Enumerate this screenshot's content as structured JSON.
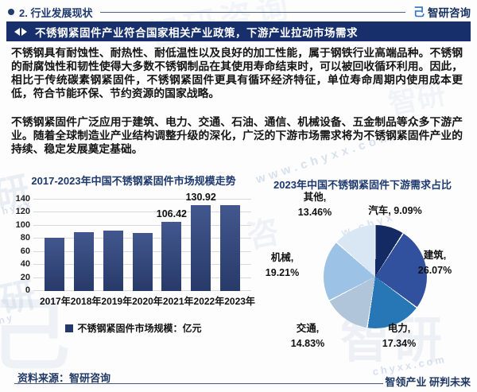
{
  "header": {
    "section_title": "2. 行业发展现状",
    "brand": "智研咨询"
  },
  "icons": {
    "brand_logo": "己"
  },
  "banner": {
    "headline": "不锈钢紧固件产业符合国家相关产业政策，下游产业拉动市场需求"
  },
  "body": {
    "paragraph_1": "不锈钢具有耐蚀性、耐热性、耐低温性以及良好的加工性能，属于钢铁行业高端品种。不锈钢的耐腐蚀性和韧性使得大多数不锈钢制品在其使用寿命结束时，可以被回收循环利用。因此，相比于传统碳素钢紧固件，不锈钢紧固件更具有循环经济特征，单位寿命周期内使用成本更低，符合节能环保、节约资源的国家战略。",
    "paragraph_2": "不锈钢紧固件广泛应用于建筑、电力、交通、石油、通信、机械设备、五金制品等众多下游产业。随着全球制造业产业结构调整升级的深化，广泛的下游市场需求将为不锈钢紧固件产业的持续、稳定发展奠定基础。"
  },
  "chart_data": [
    {
      "type": "bar",
      "title": "2017-2023年中国不锈钢紧固件市场规模走势",
      "categories": [
        "2017年",
        "2018年",
        "2019年",
        "2020年",
        "2021年",
        "2022年",
        "2023年"
      ],
      "values": [
        81,
        90,
        92,
        89,
        106.42,
        130.92,
        131
      ],
      "value_labels": [
        "",
        "",
        "",
        "",
        "106.42",
        "130.92",
        ""
      ],
      "legend": "不锈钢紧固件市场规模：亿元",
      "xlabel": "",
      "ylabel": "",
      "ylim": [
        0,
        140
      ],
      "ytick_step": 20,
      "grid": true,
      "legend_position": "bottom",
      "bar_color": "#2e4270"
    },
    {
      "type": "pie",
      "title": "2023年中国不锈钢紧固件下游需求占比",
      "slices": [
        {
          "label": "汽车",
          "value": 9.09,
          "color": "#142a63"
        },
        {
          "label": "建筑",
          "value": 26.07,
          "color": "#31519e"
        },
        {
          "label": "电力",
          "value": 17.34,
          "color": "#2776b5"
        },
        {
          "label": "交通",
          "value": 14.83,
          "color": "#b0c4da"
        },
        {
          "label": "机械",
          "value": 19.21,
          "color": "#9cc2e5"
        },
        {
          "label": "其他",
          "value": 13.46,
          "color": "#d9e6f4"
        }
      ],
      "start_angle_deg": 0,
      "direction": "clockwise",
      "label_format": "{label}, {value}%"
    }
  ],
  "footer": {
    "source": "资料来源：智研咨询",
    "slogan": "智领产业 研判未来"
  },
  "colors": {
    "accent_navy": "#1f3864",
    "banner_bg": "#17306b",
    "bar_fill": "#2e4270",
    "gridline": "#d9d9d9",
    "watermark": "#9fb6d2"
  },
  "watermarks": [
    "研",
    "hyxx",
    "研",
    "hy",
    "www.chyxx.com",
    "w.chyx",
    "智研咨询",
    "智研",
    "己",
    "智研",
    "chyxx.com",
    "咨"
  ]
}
